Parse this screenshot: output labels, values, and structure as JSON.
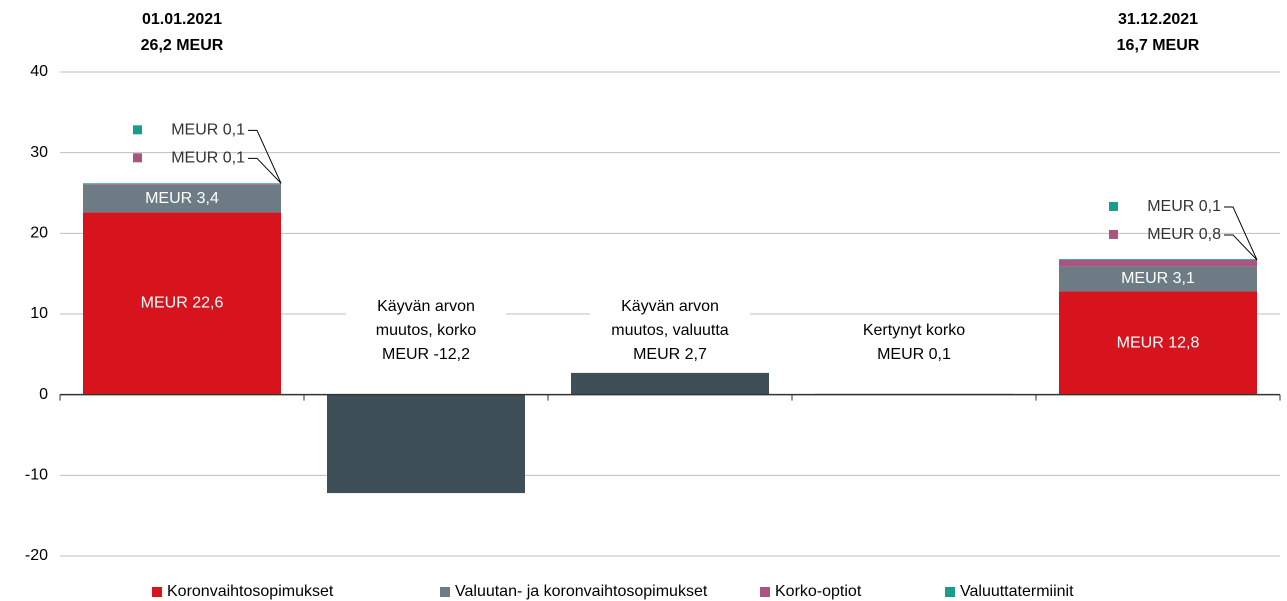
{
  "chart_data": {
    "type": "waterfall",
    "categories": [
      null,
      null,
      null,
      null,
      null
    ],
    "ylim": [
      -20,
      40
    ],
    "yticks": [
      -20,
      -10,
      0,
      10,
      20,
      30,
      40
    ],
    "grid": true,
    "legend": "bottom",
    "totals": [
      26.2,
      null,
      null,
      null,
      16.7
    ],
    "total_dates": [
      "01.01.2021",
      null,
      null,
      null,
      "31.12.2021"
    ],
    "total_labels": [
      "26,2 MEUR",
      null,
      null,
      null,
      "16,7 MEUR"
    ],
    "series": [
      {
        "name": "Koronvaihtosopimukset",
        "color": "#d7141e",
        "values": [
          22.6,
          null,
          null,
          null,
          12.8
        ],
        "value_labels": [
          "MEUR 22,6",
          null,
          null,
          null,
          "MEUR 12,8"
        ]
      },
      {
        "name": "Valuutan- ja koronvaihtosopimukset",
        "color": "#6c7b84",
        "values": [
          3.4,
          null,
          null,
          null,
          3.1
        ],
        "value_labels": [
          "MEUR 3,4",
          null,
          null,
          null,
          "MEUR 3,1"
        ]
      },
      {
        "name": "Korko-optiot",
        "color": "#a8557f",
        "values": [
          0.1,
          null,
          null,
          null,
          0.8
        ],
        "value_labels": [
          "MEUR 0,1",
          null,
          null,
          null,
          "MEUR 0,8"
        ]
      },
      {
        "name": "Valuuttatermiinit",
        "color": "#1a9c8c",
        "values": [
          0.1,
          null,
          null,
          null,
          0.1
        ],
        "value_labels": [
          "MEUR 0,1",
          null,
          null,
          null,
          "MEUR 0,1"
        ]
      }
    ],
    "changes": {
      "color": "#3f4f57",
      "values": [
        null,
        -12.2,
        2.7,
        0.1,
        null
      ],
      "titles": [
        null,
        [
          "Käyvän arvon",
          "muutos, korko"
        ],
        [
          "Käyvän arvon",
          "muutos, valuutta"
        ],
        [
          "Kertynyt korko"
        ],
        null
      ],
      "value_labels": [
        null,
        "MEUR -12,2",
        "MEUR 2,7",
        "MEUR 0,1",
        null
      ]
    }
  }
}
